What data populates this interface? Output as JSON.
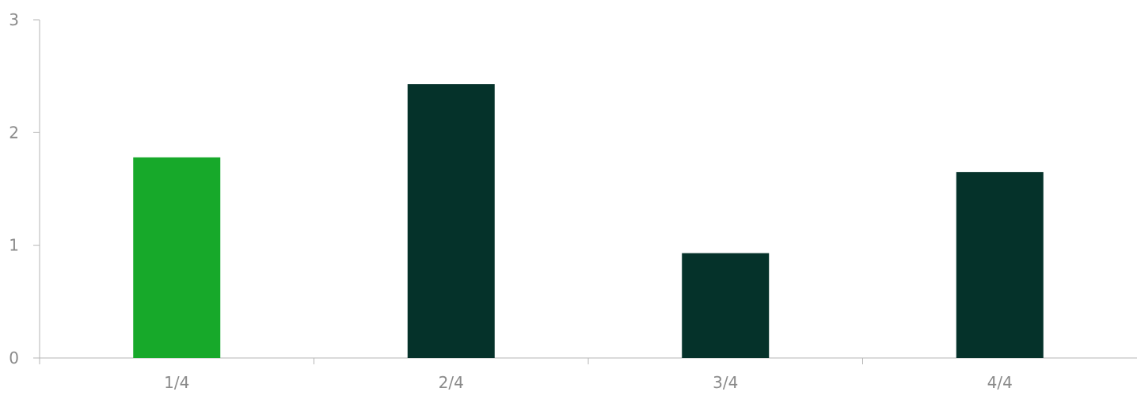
{
  "chart_data": {
    "type": "bar",
    "title": "",
    "xlabel": "",
    "ylabel": "",
    "categories": [
      "1/4",
      "2/4",
      "3/4",
      "4/4"
    ],
    "values": [
      1.78,
      2.43,
      0.93,
      1.65
    ],
    "bar_colors": [
      "#17a92a",
      "#05322a",
      "#05322a",
      "#05322a"
    ],
    "ylim": [
      0,
      3
    ],
    "yticks": [
      "0",
      "1",
      "2",
      "3"
    ],
    "grid": false,
    "legend": "none"
  }
}
